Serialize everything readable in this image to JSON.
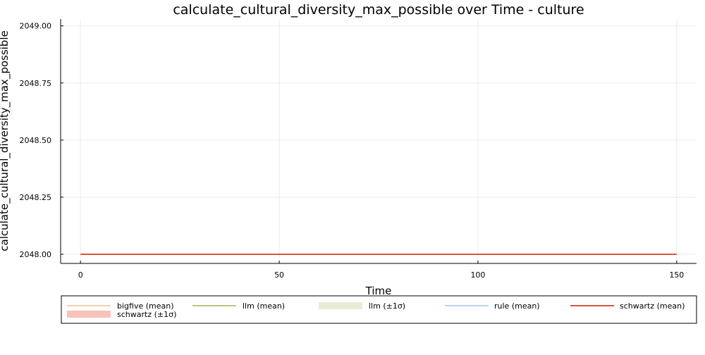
{
  "chart_data": {
    "type": "line",
    "title": "calculate_cultural_diversity_max_possible over Time - culture",
    "xlabel": "Time",
    "ylabel": "calculate_cultural_diversity_max_possible",
    "xlim": [
      -5,
      155
    ],
    "ylim": [
      2047.96,
      2049.03
    ],
    "xticks": [
      0,
      50,
      100,
      150
    ],
    "xtick_labels": [
      "0",
      "50",
      "100",
      "150"
    ],
    "yticks": [
      2048.0,
      2048.25,
      2048.5,
      2048.75,
      2049.0
    ],
    "ytick_labels": [
      "2048.00",
      "2048.25",
      "2048.50",
      "2048.75",
      "2049.00"
    ],
    "grid": true,
    "legend_position": "bottom",
    "legend": [
      {
        "label": "bigfive (mean)",
        "kind": "line",
        "color": "#f2d3ab"
      },
      {
        "label": "llm (mean)",
        "kind": "line",
        "color": "#bfc487"
      },
      {
        "label": "llm (±1σ)",
        "kind": "band",
        "color": "#e9ecd4"
      },
      {
        "label": "rule (mean)",
        "kind": "line",
        "color": "#bcd4ee"
      },
      {
        "label": "schwartz (mean)",
        "kind": "line",
        "color": "#d9543f"
      },
      {
        "label": "schwartz (±1σ)",
        "kind": "band",
        "color": "#f7c2b8"
      }
    ],
    "series": [
      {
        "name": "schwartz (mean)",
        "color": "#d9543f",
        "x": [
          0,
          150
        ],
        "y": [
          2048.0,
          2048.0
        ]
      }
    ]
  }
}
